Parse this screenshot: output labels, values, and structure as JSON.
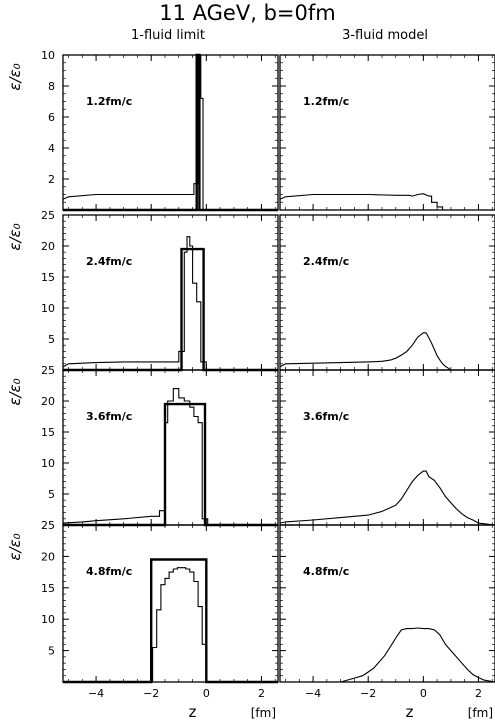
{
  "title": "11 AGeV, b=0fm",
  "column_titles": [
    "1-fluid limit",
    "3-fluid model"
  ],
  "y_axis_label": "ε/ε₀",
  "x_axis_label": "z",
  "x_unit_label": "[fm]",
  "chart_data": {
    "type": "line",
    "layout": "4 rows x 2 columns of panels, shared x axis",
    "xlim": [
      -5.2,
      2.6
    ],
    "xticks": [
      "-4",
      "-2",
      "0",
      "2"
    ],
    "rows": [
      {
        "time_label": "1.2fm/c",
        "ylim": [
          0,
          10
        ],
        "yticks": [
          "2",
          "4",
          "6",
          "8",
          "10"
        ],
        "panels": [
          {
            "column": "1-fluid limit",
            "series": [
              {
                "style": "thick",
                "x": [
                  -5.2,
                  -0.35,
                  -0.35,
                  -0.25,
                  -0.25,
                  2.6
                ],
                "y": [
                  0,
                  0,
                  10,
                  10,
                  0,
                  0
                ]
              },
              {
                "style": "thin",
                "x": [
                  -5.2,
                  -5.0,
                  -4.0,
                  -3.0,
                  -2.0,
                  -1.0,
                  -0.6,
                  -0.45,
                  -0.45,
                  -0.3,
                  -0.3,
                  -0.2,
                  -0.2,
                  -0.12,
                  -0.12,
                  2.6
                ],
                "y": [
                  0.7,
                  0.85,
                  1.0,
                  1.0,
                  1.0,
                  1.0,
                  1.0,
                  1.0,
                  1.7,
                  1.7,
                  10,
                  10,
                  7.2,
                  7.2,
                  0,
                  0
                ]
              }
            ]
          },
          {
            "column": "3-fluid model",
            "series": [
              {
                "style": "thin",
                "x": [
                  -5.2,
                  -5.0,
                  -4.0,
                  -3.0,
                  -2.0,
                  -1.0,
                  -0.5,
                  -0.4,
                  -0.2,
                  0.0,
                  0.2,
                  0.3,
                  0.3,
                  0.5,
                  0.5,
                  0.7,
                  0.7,
                  2.6
                ],
                "y": [
                  0.7,
                  0.85,
                  1.0,
                  1.0,
                  1.0,
                  0.95,
                  0.95,
                  0.9,
                  1.0,
                  1.05,
                  0.9,
                  0.9,
                  0.5,
                  0.5,
                  0.2,
                  0.2,
                  0,
                  0
                ]
              }
            ]
          }
        ]
      },
      {
        "time_label": "2.4fm/c",
        "ylim": [
          0,
          25
        ],
        "yticks": [
          "5",
          "10",
          "15",
          "20",
          "25"
        ],
        "panels": [
          {
            "column": "1-fluid limit",
            "series": [
              {
                "style": "thick",
                "x": [
                  -5.2,
                  -0.9,
                  -0.9,
                  -0.1,
                  -0.1,
                  2.6
                ],
                "y": [
                  0,
                  0,
                  19.5,
                  19.5,
                  0,
                  0
                ]
              },
              {
                "style": "thin",
                "x": [
                  -5.2,
                  -5.0,
                  -4.0,
                  -3.0,
                  -2.0,
                  -1.2,
                  -1.0,
                  -1.0,
                  -0.8,
                  -0.8,
                  -0.7,
                  -0.7,
                  -0.6,
                  -0.6,
                  -0.5,
                  -0.5,
                  -0.35,
                  -0.35,
                  -0.2,
                  -0.2,
                  0.0,
                  0.0,
                  2.6
                ],
                "y": [
                  0.5,
                  1.0,
                  1.2,
                  1.3,
                  1.3,
                  1.3,
                  1.3,
                  3.0,
                  3.0,
                  19.0,
                  19.0,
                  21.5,
                  21.5,
                  20.0,
                  20.0,
                  14.0,
                  14.0,
                  11.0,
                  11.0,
                  1.3,
                  1.3,
                  0,
                  0
                ]
              }
            ]
          },
          {
            "column": "3-fluid model",
            "series": [
              {
                "style": "thin",
                "x": [
                  -5.2,
                  -5.0,
                  -4.0,
                  -3.0,
                  -2.0,
                  -1.5,
                  -1.2,
                  -1.0,
                  -0.8,
                  -0.6,
                  -0.4,
                  -0.2,
                  0.0,
                  0.1,
                  0.2,
                  0.3,
                  0.4,
                  0.5,
                  0.6,
                  0.7,
                  0.8,
                  0.9,
                  1.0,
                  2.6
                ],
                "y": [
                  0.5,
                  1.0,
                  1.1,
                  1.2,
                  1.3,
                  1.4,
                  1.6,
                  1.9,
                  2.4,
                  3.0,
                  4.0,
                  5.3,
                  6.0,
                  6.0,
                  5.2,
                  4.3,
                  3.3,
                  2.3,
                  1.6,
                  1.0,
                  0.6,
                  0.3,
                  0,
                  0
                ]
              }
            ]
          }
        ]
      },
      {
        "time_label": "3.6fm/c",
        "ylim": [
          0,
          25
        ],
        "yticks": [
          "5",
          "10",
          "15",
          "20",
          "25"
        ],
        "panels": [
          {
            "column": "1-fluid limit",
            "series": [
              {
                "style": "thick",
                "x": [
                  -5.2,
                  -1.5,
                  -1.5,
                  -0.05,
                  -0.05,
                  2.6
                ],
                "y": [
                  0,
                  0,
                  19.5,
                  19.5,
                  0,
                  0
                ]
              },
              {
                "style": "thin",
                "x": [
                  -5.2,
                  -4.5,
                  -4.0,
                  -3.0,
                  -2.0,
                  -1.7,
                  -1.7,
                  -1.5,
                  -1.5,
                  -1.4,
                  -1.4,
                  -1.2,
                  -1.2,
                  -1.0,
                  -1.0,
                  -0.8,
                  -0.8,
                  -0.6,
                  -0.6,
                  -0.45,
                  -0.45,
                  -0.3,
                  -0.3,
                  -0.15,
                  -0.15,
                  0.05,
                  0.05,
                  2.6
                ],
                "y": [
                  0.3,
                  0.5,
                  0.7,
                  1.0,
                  1.4,
                  1.4,
                  2.3,
                  2.3,
                  16.5,
                  16.5,
                  20.0,
                  20.0,
                  22.0,
                  22.0,
                  20.5,
                  20.5,
                  20.0,
                  20.0,
                  19.0,
                  19.0,
                  17.5,
                  17.5,
                  16.5,
                  16.5,
                  1.0,
                  1.0,
                  0,
                  0
                ]
              }
            ]
          },
          {
            "column": "3-fluid model",
            "series": [
              {
                "style": "thin",
                "x": [
                  -5.2,
                  -5.0,
                  -4.0,
                  -3.0,
                  -2.0,
                  -1.5,
                  -1.0,
                  -0.8,
                  -0.6,
                  -0.4,
                  -0.2,
                  0.0,
                  0.1,
                  0.2,
                  0.4,
                  0.6,
                  0.8,
                  1.0,
                  1.2,
                  1.4,
                  1.6,
                  1.8,
                  2.0,
                  2.6
                ],
                "y": [
                  0.3,
                  0.5,
                  0.8,
                  1.2,
                  1.6,
                  2.2,
                  3.2,
                  4.2,
                  5.6,
                  7.0,
                  8.0,
                  8.7,
                  8.7,
                  7.8,
                  7.2,
                  6.0,
                  4.6,
                  3.6,
                  2.6,
                  1.8,
                  1.2,
                  0.8,
                  0.3,
                  0
                ]
              }
            ]
          }
        ]
      },
      {
        "time_label": "4.8fm/c",
        "ylim": [
          0,
          25
        ],
        "yticks": [
          "5",
          "10",
          "15",
          "20",
          "25"
        ],
        "panels": [
          {
            "column": "1-fluid limit",
            "series": [
              {
                "style": "thick",
                "x": [
                  -5.2,
                  -2.0,
                  -2.0,
                  0.0,
                  0.0,
                  2.6
                ],
                "y": [
                  0,
                  0,
                  19.5,
                  19.5,
                  0,
                  0
                ]
              },
              {
                "style": "thin",
                "x": [
                  -5.2,
                  -1.95,
                  -1.95,
                  -1.8,
                  -1.8,
                  -1.65,
                  -1.65,
                  -1.5,
                  -1.5,
                  -1.35,
                  -1.35,
                  -1.2,
                  -1.2,
                  -1.05,
                  -1.05,
                  -0.9,
                  -0.9,
                  -0.75,
                  -0.75,
                  -0.6,
                  -0.6,
                  -0.45,
                  -0.45,
                  -0.3,
                  -0.3,
                  -0.15,
                  -0.15,
                  0.0,
                  0.0,
                  2.6
                ],
                "y": [
                  0,
                  0,
                  5.5,
                  5.5,
                  11.5,
                  11.5,
                  15.5,
                  15.5,
                  16.5,
                  16.5,
                  17.5,
                  17.5,
                  18.0,
                  18.0,
                  18.2,
                  18.2,
                  18.2,
                  18.2,
                  18.0,
                  18.0,
                  17.5,
                  17.5,
                  16.0,
                  16.0,
                  12.0,
                  12.0,
                  6.0,
                  6.0,
                  0,
                  0
                ]
              }
            ]
          },
          {
            "column": "3-fluid model",
            "series": [
              {
                "style": "thin",
                "x": [
                  -5.2,
                  -3.0,
                  -2.6,
                  -2.2,
                  -2.0,
                  -1.8,
                  -1.6,
                  -1.4,
                  -1.2,
                  -1.0,
                  -0.8,
                  -0.6,
                  -0.4,
                  -0.2,
                  0.0,
                  0.2,
                  0.4,
                  0.6,
                  0.8,
                  1.0,
                  1.2,
                  1.4,
                  1.6,
                  1.8,
                  2.0,
                  2.2,
                  2.6
                ],
                "y": [
                  0,
                  0,
                  0.5,
                  1.0,
                  1.6,
                  2.2,
                  3.2,
                  4.2,
                  5.6,
                  7.0,
                  8.3,
                  8.5,
                  8.5,
                  8.6,
                  8.5,
                  8.5,
                  8.3,
                  7.5,
                  6.0,
                  5.0,
                  4.0,
                  3.0,
                  2.0,
                  1.2,
                  0.7,
                  0.3,
                  0
                ]
              }
            ]
          }
        ]
      }
    ]
  }
}
